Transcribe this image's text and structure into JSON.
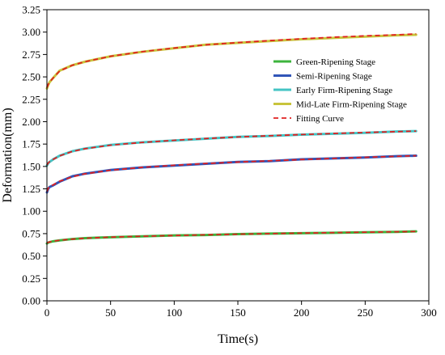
{
  "chart_data": {
    "type": "line",
    "title": "",
    "xlabel": "Time(s)",
    "ylabel": "Deformation(mm)",
    "xlim": [
      0,
      300
    ],
    "ylim": [
      0.0,
      3.25
    ],
    "x_ticks": [
      0,
      50,
      100,
      150,
      200,
      250,
      300
    ],
    "y_ticks": [
      0.0,
      0.25,
      0.5,
      0.75,
      1.0,
      1.25,
      1.5,
      1.75,
      2.0,
      2.25,
      2.5,
      2.75,
      3.0,
      3.25
    ],
    "x_tick_labels": [
      "0",
      "50",
      "100",
      "150",
      "200",
      "250",
      "300"
    ],
    "y_tick_labels": [
      "0.00",
      "0.25",
      "0.50",
      "0.75",
      "1.00",
      "1.25",
      "1.50",
      "1.75",
      "2.00",
      "2.25",
      "2.50",
      "2.75",
      "3.00",
      "3.25"
    ],
    "grid": false,
    "legend_position": "right",
    "x": [
      0,
      1,
      2,
      5,
      10,
      20,
      30,
      50,
      75,
      100,
      125,
      150,
      175,
      200,
      225,
      250,
      275,
      290
    ],
    "series": [
      {
        "name": "Green-Ripening Stage",
        "color": "#3cb43c",
        "style": "solid",
        "values": [
          0.64,
          0.65,
          0.655,
          0.665,
          0.675,
          0.69,
          0.7,
          0.71,
          0.72,
          0.73,
          0.735,
          0.745,
          0.75,
          0.755,
          0.76,
          0.765,
          0.77,
          0.775
        ]
      },
      {
        "name": "Semi-Ripening Stage",
        "color": "#3155b8",
        "style": "solid",
        "values": [
          1.21,
          1.25,
          1.27,
          1.29,
          1.33,
          1.39,
          1.42,
          1.46,
          1.49,
          1.51,
          1.53,
          1.55,
          1.56,
          1.58,
          1.59,
          1.6,
          1.615,
          1.62
        ]
      },
      {
        "name": "Early Firm-Ripening Stage",
        "color": "#44c4c4",
        "style": "solid",
        "values": [
          1.51,
          1.535,
          1.55,
          1.58,
          1.62,
          1.67,
          1.7,
          1.74,
          1.77,
          1.79,
          1.81,
          1.83,
          1.84,
          1.855,
          1.865,
          1.875,
          1.89,
          1.895
        ]
      },
      {
        "name": "Mid-Late Firm-Ripening Stage",
        "color": "#c8c43c",
        "style": "solid",
        "values": [
          2.37,
          2.41,
          2.44,
          2.49,
          2.57,
          2.63,
          2.67,
          2.73,
          2.78,
          2.82,
          2.86,
          2.88,
          2.9,
          2.92,
          2.935,
          2.95,
          2.965,
          2.97
        ]
      },
      {
        "name": "Fitting Curve",
        "color": "#e02020",
        "style": "dashed",
        "fits": [
          [
            0.645,
            0.652,
            0.657,
            0.666,
            0.676,
            0.689,
            0.699,
            0.711,
            0.721,
            0.729,
            0.737,
            0.744,
            0.75,
            0.756,
            0.761,
            0.766,
            0.771,
            0.774
          ],
          [
            1.22,
            1.255,
            1.272,
            1.295,
            1.335,
            1.385,
            1.418,
            1.458,
            1.49,
            1.513,
            1.533,
            1.549,
            1.563,
            1.577,
            1.59,
            1.602,
            1.613,
            1.62
          ],
          [
            1.515,
            1.538,
            1.552,
            1.58,
            1.618,
            1.668,
            1.698,
            1.738,
            1.768,
            1.792,
            1.812,
            1.829,
            1.843,
            1.856,
            1.868,
            1.879,
            1.889,
            1.895
          ],
          [
            2.38,
            2.415,
            2.44,
            2.49,
            2.565,
            2.63,
            2.67,
            2.73,
            2.782,
            2.822,
            2.858,
            2.883,
            2.905,
            2.925,
            2.943,
            2.958,
            2.97,
            2.98
          ]
        ]
      }
    ]
  }
}
